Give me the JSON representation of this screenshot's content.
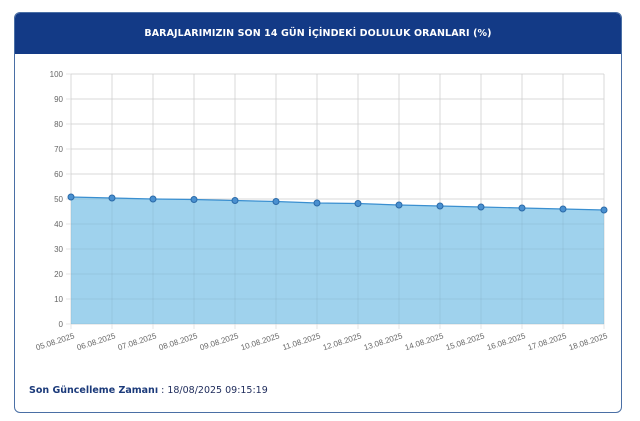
{
  "header": {
    "title": "BARAJLARIMIZIN SON 14 GÜN İÇİNDEKİ DOLULUK ORANLARI (%)"
  },
  "footer": {
    "label": "Son Güncelleme Zamanı",
    "separator": " : ",
    "value": "18/08/2025 09:15:19"
  },
  "colors": {
    "header_bg": "#133a86",
    "fill": "#9ad0ec",
    "line": "#3a8fd0",
    "point": "#4a90d0"
  },
  "chart_data": {
    "type": "area",
    "title": "BARAJLARIMIZIN SON 14 GÜN İÇİNDEKİ DOLULUK ORANLARI (%)",
    "xlabel": "",
    "ylabel": "",
    "ylim": [
      0,
      100
    ],
    "yticks": [
      0,
      10,
      20,
      30,
      40,
      50,
      60,
      70,
      80,
      90,
      100
    ],
    "grid": true,
    "legend": "none",
    "categories": [
      "05.08.2025",
      "06.08.2025",
      "07.08.2025",
      "08.08.2025",
      "09.08.2025",
      "10.08.2025",
      "11.08.2025",
      "12.08.2025",
      "13.08.2025",
      "14.08.2025",
      "15.08.2025",
      "16.08.2025",
      "17.08.2025",
      "18.08.2025"
    ],
    "series": [
      {
        "name": "Doluluk Oranı (%)",
        "values": [
          50.8,
          50.4,
          50.0,
          49.8,
          49.4,
          49.0,
          48.4,
          48.2,
          47.6,
          47.2,
          46.8,
          46.4,
          46.0,
          45.6
        ]
      }
    ]
  }
}
